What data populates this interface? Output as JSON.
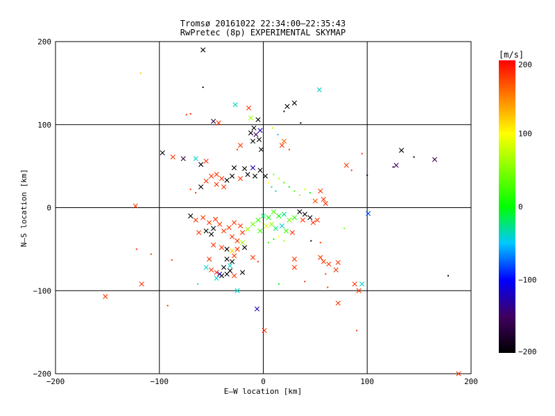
{
  "chart_data": {
    "type": "scatter",
    "title": "Tromsø 20161022 22:34:00–22:35:43",
    "subtitle": "RwPretec (8p) EXPERIMENTAL SKYMAP",
    "xlabel": "E–W location [km]",
    "ylabel": "N–S location [km]",
    "xlim": [
      -200,
      200
    ],
    "ylim": [
      -200,
      200
    ],
    "xticks": [
      -200,
      -100,
      0,
      100,
      200
    ],
    "yticks": [
      -200,
      -100,
      0,
      100,
      200
    ],
    "grid": true,
    "colorbar": {
      "label": "[m/s]",
      "min": -200,
      "max": 200,
      "ticks": [
        200,
        100,
        0,
        -100,
        -200
      ],
      "colormap": "black-purple-blue-cyan-green-yellow-red"
    },
    "points": [
      {
        "x": -58,
        "y": 190,
        "v": -200,
        "m": "x"
      },
      {
        "x": 54,
        "y": 142,
        "v": -40,
        "m": "x"
      },
      {
        "x": -58,
        "y": 145,
        "v": -200,
        "m": "d"
      },
      {
        "x": -118,
        "y": 162,
        "v": 120,
        "m": "d"
      },
      {
        "x": -27,
        "y": 124,
        "v": -40,
        "m": "x"
      },
      {
        "x": -14,
        "y": 120,
        "v": 180,
        "m": "x"
      },
      {
        "x": 30,
        "y": 126,
        "v": -200,
        "m": "x"
      },
      {
        "x": 23,
        "y": 122,
        "v": -200,
        "m": "x"
      },
      {
        "x": 20,
        "y": 116,
        "v": -200,
        "m": "d"
      },
      {
        "x": -48,
        "y": 104,
        "v": -170,
        "m": "x"
      },
      {
        "x": -43,
        "y": 102,
        "v": 180,
        "m": "x"
      },
      {
        "x": -74,
        "y": 112,
        "v": 180,
        "m": "d"
      },
      {
        "x": -70,
        "y": 113,
        "v": 190,
        "m": "d"
      },
      {
        "x": 36,
        "y": 102,
        "v": -200,
        "m": "d"
      },
      {
        "x": -12,
        "y": 108,
        "v": 60,
        "m": "x"
      },
      {
        "x": -5,
        "y": 106,
        "v": -200,
        "m": "x"
      },
      {
        "x": -9,
        "y": 96,
        "v": -200,
        "m": "x"
      },
      {
        "x": -3,
        "y": 93,
        "v": -120,
        "m": "x"
      },
      {
        "x": -12,
        "y": 90,
        "v": -200,
        "m": "x"
      },
      {
        "x": -7,
        "y": 88,
        "v": -150,
        "m": "x"
      },
      {
        "x": -4,
        "y": 82,
        "v": -200,
        "m": "x"
      },
      {
        "x": -10,
        "y": 80,
        "v": -200,
        "m": "x"
      },
      {
        "x": 9,
        "y": 96,
        "v": 80,
        "m": "d"
      },
      {
        "x": 14,
        "y": 88,
        "v": -40,
        "m": "d"
      },
      {
        "x": 20,
        "y": 80,
        "v": 160,
        "m": "x"
      },
      {
        "x": 18,
        "y": 75,
        "v": 180,
        "m": "x"
      },
      {
        "x": 25,
        "y": 70,
        "v": 180,
        "m": "d"
      },
      {
        "x": -22,
        "y": 75,
        "v": 180,
        "m": "x"
      },
      {
        "x": -25,
        "y": 70,
        "v": 180,
        "m": "d"
      },
      {
        "x": -2,
        "y": 70,
        "v": -200,
        "m": "x"
      },
      {
        "x": -97,
        "y": 66,
        "v": -200,
        "m": "x"
      },
      {
        "x": -87,
        "y": 61,
        "v": 180,
        "m": "x"
      },
      {
        "x": -77,
        "y": 59,
        "v": -170,
        "m": "x"
      },
      {
        "x": -65,
        "y": 59,
        "v": -40,
        "m": "x"
      },
      {
        "x": -55,
        "y": 56,
        "v": 180,
        "m": "x"
      },
      {
        "x": -60,
        "y": 52,
        "v": -200,
        "m": "x"
      },
      {
        "x": 133,
        "y": 69,
        "v": -200,
        "m": "x"
      },
      {
        "x": 145,
        "y": 61,
        "v": -200,
        "m": "d"
      },
      {
        "x": 165,
        "y": 58,
        "v": -160,
        "m": "x"
      },
      {
        "x": 128,
        "y": 51,
        "v": -150,
        "m": "x"
      },
      {
        "x": 125,
        "y": 49,
        "v": -170,
        "m": "d"
      },
      {
        "x": 95,
        "y": 65,
        "v": 180,
        "m": "d"
      },
      {
        "x": 80,
        "y": 51,
        "v": 180,
        "m": "x"
      },
      {
        "x": 100,
        "y": 39,
        "v": -200,
        "m": "d"
      },
      {
        "x": 85,
        "y": 45,
        "v": 180,
        "m": "d"
      },
      {
        "x": -28,
        "y": 48,
        "v": -200,
        "m": "x"
      },
      {
        "x": -18,
        "y": 47,
        "v": -200,
        "m": "x"
      },
      {
        "x": -10,
        "y": 48,
        "v": -120,
        "m": "x"
      },
      {
        "x": -3,
        "y": 45,
        "v": -200,
        "m": "x"
      },
      {
        "x": -15,
        "y": 40,
        "v": -200,
        "m": "x"
      },
      {
        "x": -8,
        "y": 38,
        "v": -200,
        "m": "x"
      },
      {
        "x": 2,
        "y": 38,
        "v": -200,
        "m": "x"
      },
      {
        "x": -30,
        "y": 38,
        "v": -200,
        "m": "x"
      },
      {
        "x": -35,
        "y": 33,
        "v": -200,
        "m": "x"
      },
      {
        "x": -22,
        "y": 35,
        "v": 180,
        "m": "x"
      },
      {
        "x": -40,
        "y": 35,
        "v": 180,
        "m": "x"
      },
      {
        "x": -45,
        "y": 40,
        "v": 180,
        "m": "x"
      },
      {
        "x": -50,
        "y": 38,
        "v": 180,
        "m": "x"
      },
      {
        "x": -55,
        "y": 32,
        "v": 180,
        "m": "x"
      },
      {
        "x": -45,
        "y": 28,
        "v": 180,
        "m": "x"
      },
      {
        "x": -38,
        "y": 25,
        "v": 180,
        "m": "x"
      },
      {
        "x": -60,
        "y": 25,
        "v": -200,
        "m": "x"
      },
      {
        "x": -70,
        "y": 22,
        "v": 180,
        "m": "d"
      },
      {
        "x": -65,
        "y": 18,
        "v": 180,
        "m": "d"
      },
      {
        "x": 10,
        "y": 40,
        "v": 40,
        "m": "d"
      },
      {
        "x": 15,
        "y": 35,
        "v": 60,
        "m": "d"
      },
      {
        "x": 20,
        "y": 30,
        "v": 20,
        "m": "d"
      },
      {
        "x": 25,
        "y": 25,
        "v": 0,
        "m": "d"
      },
      {
        "x": 5,
        "y": 30,
        "v": 100,
        "m": "d"
      },
      {
        "x": 8,
        "y": 25,
        "v": -20,
        "m": "d"
      },
      {
        "x": 12,
        "y": 20,
        "v": -40,
        "m": "d"
      },
      {
        "x": 30,
        "y": 20,
        "v": 20,
        "m": "d"
      },
      {
        "x": 35,
        "y": 15,
        "v": 60,
        "m": "d"
      },
      {
        "x": 40,
        "y": 22,
        "v": 80,
        "m": "d"
      },
      {
        "x": 45,
        "y": 18,
        "v": 0,
        "m": "d"
      },
      {
        "x": 55,
        "y": 20,
        "v": 180,
        "m": "x"
      },
      {
        "x": 58,
        "y": 10,
        "v": 180,
        "m": "x"
      },
      {
        "x": 60,
        "y": 5,
        "v": 180,
        "m": "x"
      },
      {
        "x": 50,
        "y": 8,
        "v": 170,
        "m": "x"
      },
      {
        "x": -123,
        "y": 2,
        "v": 180,
        "m": "x"
      },
      {
        "x": -70,
        "y": -10,
        "v": -200,
        "m": "x"
      },
      {
        "x": -65,
        "y": -15,
        "v": 180,
        "m": "x"
      },
      {
        "x": -58,
        "y": -12,
        "v": 180,
        "m": "x"
      },
      {
        "x": -52,
        "y": -18,
        "v": 180,
        "m": "x"
      },
      {
        "x": -46,
        "y": -14,
        "v": 180,
        "m": "x"
      },
      {
        "x": -42,
        "y": -20,
        "v": 180,
        "m": "x"
      },
      {
        "x": -48,
        "y": -25,
        "v": -200,
        "m": "x"
      },
      {
        "x": -55,
        "y": -28,
        "v": -200,
        "m": "x"
      },
      {
        "x": -50,
        "y": -32,
        "v": -200,
        "m": "x"
      },
      {
        "x": -62,
        "y": -30,
        "v": 180,
        "m": "x"
      },
      {
        "x": -38,
        "y": -28,
        "v": 180,
        "m": "x"
      },
      {
        "x": -33,
        "y": -24,
        "v": 180,
        "m": "x"
      },
      {
        "x": -28,
        "y": -18,
        "v": 180,
        "m": "x"
      },
      {
        "x": -22,
        "y": -22,
        "v": 180,
        "m": "x"
      },
      {
        "x": -30,
        "y": -35,
        "v": 180,
        "m": "x"
      },
      {
        "x": -25,
        "y": -40,
        "v": 180,
        "m": "x"
      },
      {
        "x": -20,
        "y": -30,
        "v": 180,
        "m": "x"
      },
      {
        "x": -15,
        "y": -26,
        "v": 60,
        "m": "x"
      },
      {
        "x": -10,
        "y": -20,
        "v": 40,
        "m": "x"
      },
      {
        "x": -5,
        "y": -15,
        "v": 20,
        "m": "x"
      },
      {
        "x": 0,
        "y": -10,
        "v": -20,
        "m": "x"
      },
      {
        "x": 5,
        "y": -12,
        "v": 10,
        "m": "x"
      },
      {
        "x": 10,
        "y": -5,
        "v": 30,
        "m": "x"
      },
      {
        "x": 15,
        "y": -10,
        "v": 0,
        "m": "x"
      },
      {
        "x": 20,
        "y": -8,
        "v": -30,
        "m": "x"
      },
      {
        "x": 25,
        "y": -15,
        "v": 40,
        "m": "x"
      },
      {
        "x": 30,
        "y": -12,
        "v": 20,
        "m": "x"
      },
      {
        "x": 35,
        "y": -5,
        "v": -200,
        "m": "x"
      },
      {
        "x": 40,
        "y": -8,
        "v": -200,
        "m": "x"
      },
      {
        "x": 45,
        "y": -12,
        "v": -200,
        "m": "x"
      },
      {
        "x": 38,
        "y": -15,
        "v": 180,
        "m": "x"
      },
      {
        "x": 48,
        "y": -18,
        "v": 180,
        "m": "x"
      },
      {
        "x": 52,
        "y": -15,
        "v": 180,
        "m": "x"
      },
      {
        "x": 8,
        "y": -20,
        "v": 60,
        "m": "x"
      },
      {
        "x": 12,
        "y": -25,
        "v": -20,
        "m": "x"
      },
      {
        "x": 3,
        "y": -22,
        "v": 80,
        "m": "x"
      },
      {
        "x": -3,
        "y": -28,
        "v": 20,
        "m": "x"
      },
      {
        "x": 18,
        "y": -22,
        "v": -40,
        "m": "x"
      },
      {
        "x": 22,
        "y": -28,
        "v": 20,
        "m": "x"
      },
      {
        "x": 28,
        "y": -30,
        "v": 180,
        "m": "x"
      },
      {
        "x": 15,
        "y": -35,
        "v": 100,
        "m": "d"
      },
      {
        "x": 10,
        "y": -38,
        "v": 0,
        "m": "d"
      },
      {
        "x": 20,
        "y": -40,
        "v": 60,
        "m": "d"
      },
      {
        "x": 5,
        "y": -42,
        "v": 20,
        "m": "d"
      },
      {
        "x": -48,
        "y": -45,
        "v": 180,
        "m": "x"
      },
      {
        "x": -40,
        "y": -48,
        "v": 180,
        "m": "x"
      },
      {
        "x": -35,
        "y": -50,
        "v": -200,
        "m": "x"
      },
      {
        "x": -30,
        "y": -52,
        "v": 120,
        "m": "x"
      },
      {
        "x": -25,
        "y": -50,
        "v": 180,
        "m": "x"
      },
      {
        "x": -28,
        "y": -58,
        "v": 180,
        "m": "x"
      },
      {
        "x": -35,
        "y": -62,
        "v": -200,
        "m": "x"
      },
      {
        "x": -30,
        "y": -65,
        "v": -200,
        "m": "x"
      },
      {
        "x": -32,
        "y": -70,
        "v": -40,
        "m": "x"
      },
      {
        "x": -38,
        "y": -72,
        "v": -200,
        "m": "x"
      },
      {
        "x": -32,
        "y": -76,
        "v": -200,
        "m": "x"
      },
      {
        "x": -35,
        "y": -80,
        "v": -200,
        "m": "x"
      },
      {
        "x": -40,
        "y": -82,
        "v": -200,
        "m": "x"
      },
      {
        "x": -45,
        "y": -78,
        "v": 180,
        "m": "x"
      },
      {
        "x": -50,
        "y": -75,
        "v": 180,
        "m": "x"
      },
      {
        "x": -55,
        "y": -72,
        "v": -40,
        "m": "x"
      },
      {
        "x": -52,
        "y": -62,
        "v": 180,
        "m": "x"
      },
      {
        "x": -45,
        "y": -85,
        "v": -40,
        "m": "x"
      },
      {
        "x": -42,
        "y": -80,
        "v": -120,
        "m": "x"
      },
      {
        "x": -28,
        "y": -82,
        "v": 180,
        "m": "x"
      },
      {
        "x": -20,
        "y": -78,
        "v": -200,
        "m": "x"
      },
      {
        "x": -10,
        "y": -60,
        "v": 180,
        "m": "x"
      },
      {
        "x": -5,
        "y": -65,
        "v": 180,
        "m": "d"
      },
      {
        "x": -20,
        "y": -42,
        "v": 60,
        "m": "x"
      },
      {
        "x": -18,
        "y": -48,
        "v": -200,
        "m": "x"
      },
      {
        "x": 30,
        "y": -62,
        "v": 180,
        "m": "x"
      },
      {
        "x": 55,
        "y": -60,
        "v": 180,
        "m": "x"
      },
      {
        "x": 58,
        "y": -65,
        "v": 180,
        "m": "x"
      },
      {
        "x": 63,
        "y": -68,
        "v": 180,
        "m": "x"
      },
      {
        "x": 72,
        "y": -66,
        "v": 180,
        "m": "x"
      },
      {
        "x": 70,
        "y": -75,
        "v": 180,
        "m": "x"
      },
      {
        "x": 88,
        "y": -92,
        "v": 180,
        "m": "x"
      },
      {
        "x": 95,
        "y": -92,
        "v": -40,
        "m": "x"
      },
      {
        "x": 92,
        "y": -100,
        "v": 180,
        "m": "x"
      },
      {
        "x": 72,
        "y": -115,
        "v": 180,
        "m": "x"
      },
      {
        "x": 90,
        "y": -148,
        "v": 180,
        "m": "d"
      },
      {
        "x": 101,
        "y": -7,
        "v": -80,
        "m": "x"
      },
      {
        "x": 78,
        "y": -25,
        "v": 40,
        "m": "d"
      },
      {
        "x": 55,
        "y": -42,
        "v": 180,
        "m": "d"
      },
      {
        "x": 46,
        "y": -40,
        "v": -200,
        "m": "d"
      },
      {
        "x": -117,
        "y": -92,
        "v": 180,
        "m": "x"
      },
      {
        "x": -152,
        "y": -107,
        "v": 180,
        "m": "x"
      },
      {
        "x": -92,
        "y": -118,
        "v": 180,
        "m": "d"
      },
      {
        "x": -108,
        "y": -56,
        "v": 180,
        "m": "d"
      },
      {
        "x": -122,
        "y": -50,
        "v": 180,
        "m": "d"
      },
      {
        "x": -88,
        "y": -63,
        "v": 180,
        "m": "d"
      },
      {
        "x": -63,
        "y": -92,
        "v": -40,
        "m": "d"
      },
      {
        "x": -25,
        "y": -100,
        "v": -40,
        "m": "x"
      },
      {
        "x": -6,
        "y": -122,
        "v": -120,
        "m": "x"
      },
      {
        "x": 1,
        "y": -148,
        "v": 180,
        "m": "x"
      },
      {
        "x": 15,
        "y": -92,
        "v": 0,
        "m": "d"
      },
      {
        "x": 40,
        "y": -89,
        "v": 180,
        "m": "d"
      },
      {
        "x": 62,
        "y": -96,
        "v": 180,
        "m": "d"
      },
      {
        "x": 60,
        "y": -80,
        "v": 180,
        "m": "d"
      },
      {
        "x": 178,
        "y": -82,
        "v": -200,
        "m": "d"
      },
      {
        "x": 188,
        "y": -200,
        "v": 180,
        "m": "x"
      },
      {
        "x": 30,
        "y": -72,
        "v": 180,
        "m": "x"
      }
    ]
  }
}
